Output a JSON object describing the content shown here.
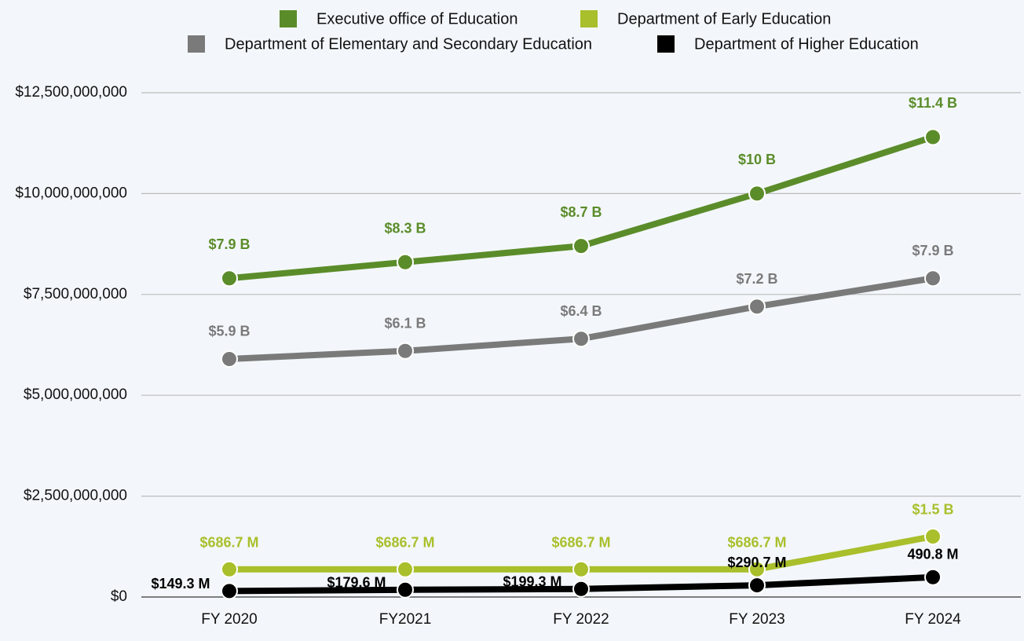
{
  "chart_data": {
    "type": "line",
    "categories": [
      "FY 2020",
      "FY2021",
      "FY 2022",
      "FY 2023",
      "FY 2024"
    ],
    "series": [
      {
        "name": "Executive office of Education",
        "color": "#5b8c2a",
        "values": [
          7900000000,
          8300000000,
          8700000000,
          10000000000,
          11400000000
        ],
        "value_labels": [
          "$7.9 B",
          "$8.3 B",
          "$8.7 B",
          "$10 B",
          "$11.4 B"
        ]
      },
      {
        "name": "Department of Early Education",
        "color": "#a9bf2b",
        "values": [
          686700000,
          686700000,
          686700000,
          686700000,
          1500000000
        ],
        "value_labels": [
          "$686.7 M",
          "$686.7 M",
          "$686.7 M",
          "$686.7 M",
          "$1.5 B"
        ]
      },
      {
        "name": "Department of Elementary and Secondary Education",
        "color": "#7a7a7a",
        "values": [
          5900000000,
          6100000000,
          6400000000,
          7200000000,
          7900000000
        ],
        "value_labels": [
          "$5.9 B",
          "$6.1 B",
          "$6.4 B",
          "$7.2 B",
          "$7.9 B"
        ]
      },
      {
        "name": "Department of Higher Education",
        "color": "#000000",
        "values": [
          149300000,
          179600000,
          199300000,
          290700000,
          490800000
        ],
        "value_labels": [
          "$149.3 M",
          "$179.6 M",
          "$199.3 M",
          "$290.7 M",
          "490.8 M"
        ]
      }
    ],
    "ylim": [
      0,
      12500000000
    ],
    "yticks": [
      {
        "value": 0,
        "label": "$0"
      },
      {
        "value": 2500000000,
        "label": "$2,500,000,000"
      },
      {
        "value": 5000000000,
        "label": "$5,000,000,000"
      },
      {
        "value": 7500000000,
        "label": "$7,500,000,000"
      },
      {
        "value": 10000000000,
        "label": "$10,000,000,000"
      },
      {
        "value": 12500000000,
        "label": "$12,500,000,000"
      }
    ],
    "grid": true,
    "legend": "top"
  }
}
